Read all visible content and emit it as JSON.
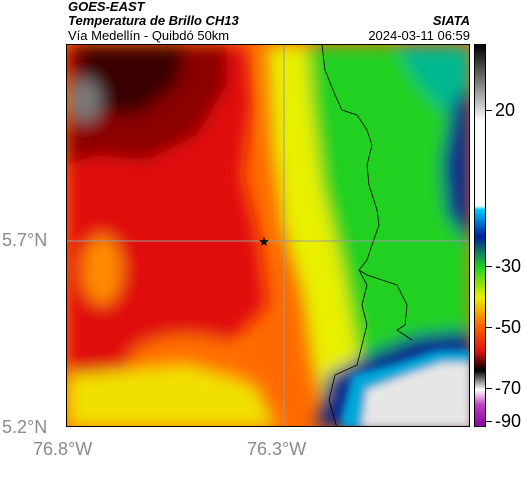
{
  "header": {
    "satellite": "GOES-EAST",
    "product": "Temperatura de Brillo CH13",
    "region": "Vía Medellín - Quibdó 50km",
    "org": "SIATA",
    "datetime": "2024-03-11 06:59"
  },
  "axes": {
    "lat_labels": [
      "5.7°N",
      "5.2°N"
    ],
    "lon_labels": [
      "76.8°W",
      "76.3°W"
    ]
  },
  "colorbar": {
    "labels": [
      "20",
      "-30",
      "-50",
      "-70",
      "-90"
    ],
    "values": [
      20,
      -30,
      -50,
      -70,
      -90
    ],
    "range": [
      -95,
      40
    ]
  },
  "map": {
    "marker": "star-icon",
    "colors": {
      "very_cold": "#1a1a1a",
      "cold": "#8b0000",
      "red": "#e01010",
      "orange": "#ff6a00",
      "yellow": "#e8f000",
      "green": "#20d020",
      "blue": "#0a2a8c",
      "cyan": "#00a8d8",
      "warm_cloudless": "#e6e6e6"
    }
  }
}
